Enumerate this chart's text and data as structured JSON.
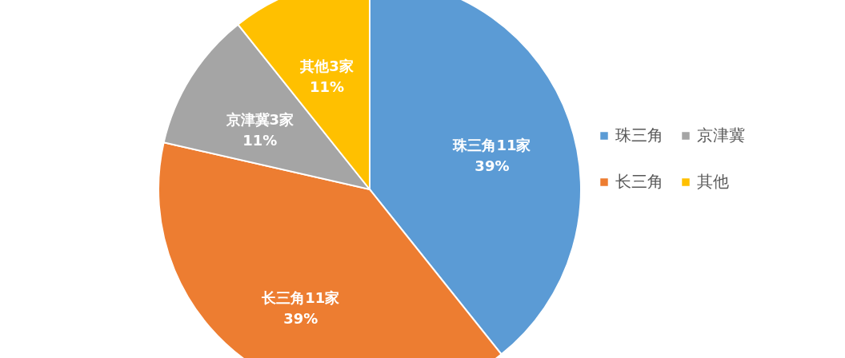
{
  "chart_data": {
    "type": "pie",
    "categories": [
      "珠三角",
      "长三角",
      "京津冀",
      "其他"
    ],
    "values": [
      11,
      11,
      3,
      3
    ],
    "colors": [
      "#5b9bd5",
      "#ed7d31",
      "#a5a5a5",
      "#ffc000"
    ],
    "value_labels": [
      "珠三角11家\n39%",
      "长三角11家\n39%",
      "京津冀3家\n11%",
      "其他3家\n11%"
    ],
    "legend": "right"
  }
}
